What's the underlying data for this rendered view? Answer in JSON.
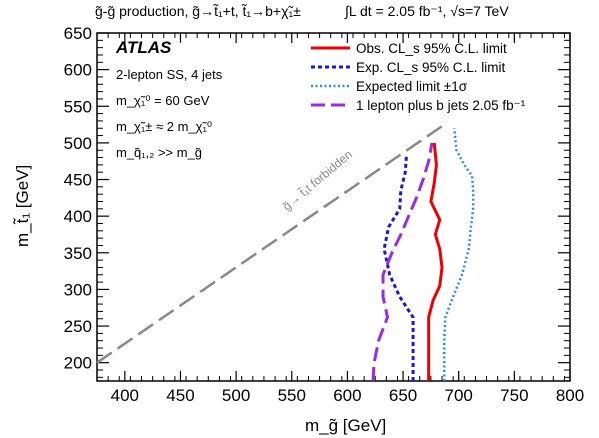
{
  "header": {
    "process": "g̃-g̃ production, g̃→t̃₁+t, t̃₁→b+χ̃₁±",
    "lumi": "∫L dt = 2.05 fb⁻¹, √s=7 TeV"
  },
  "panel": {
    "atlas": "ATLAS",
    "lines": [
      "2-lepton SS, 4 jets",
      "m_χ̃₁⁰ = 60 GeV",
      "m_χ̃₁± ≈ 2 m_χ̃₁⁰",
      "m_q̃₁,₂ >> m_g̃"
    ]
  },
  "diagonal_label": "g̃→ t̃₁t forbidden",
  "chart_data": {
    "type": "line",
    "xlabel": "m_g̃ [GeV]",
    "ylabel": "m_t̃₁ [GeV]",
    "xlim": [
      375,
      800
    ],
    "ylim": [
      175,
      650
    ],
    "xticks": [
      400,
      450,
      500,
      550,
      600,
      650,
      700,
      750,
      800
    ],
    "yticks": [
      200,
      250,
      300,
      350,
      400,
      450,
      500,
      550,
      600,
      650
    ],
    "legend_position": "top-right",
    "series": [
      {
        "name": "Obs. CL_s 95% C.L. limit",
        "color": "#ee0000",
        "style": "solid",
        "points": [
          [
            673,
            175
          ],
          [
            673,
            200
          ],
          [
            673,
            230
          ],
          [
            673,
            262
          ],
          [
            677,
            285
          ],
          [
            683,
            305
          ],
          [
            685,
            330
          ],
          [
            683,
            355
          ],
          [
            679,
            375
          ],
          [
            683,
            395
          ],
          [
            675,
            420
          ],
          [
            678,
            445
          ],
          [
            680,
            470
          ],
          [
            678,
            500
          ]
        ]
      },
      {
        "name": "Exp. CL_s 95% C.L. limit",
        "color": "#1a1acc",
        "style": "dot",
        "points": [
          [
            659,
            175
          ],
          [
            659,
            200
          ],
          [
            659,
            230
          ],
          [
            659,
            262
          ],
          [
            647,
            290
          ],
          [
            638,
            320
          ],
          [
            633,
            355
          ],
          [
            637,
            385
          ],
          [
            647,
            410
          ],
          [
            648,
            435
          ],
          [
            652,
            460
          ],
          [
            653,
            482
          ]
        ]
      },
      {
        "name": "Expected limit ±1σ",
        "color": "#2a8fd8",
        "style": "dotfine",
        "points": [
          [
            687,
            175
          ],
          [
            687,
            200
          ],
          [
            687,
            230
          ],
          [
            688,
            262
          ],
          [
            695,
            290
          ],
          [
            703,
            320
          ],
          [
            709,
            355
          ],
          [
            711,
            385
          ],
          [
            713,
            410
          ],
          [
            713,
            435
          ],
          [
            712,
            455
          ],
          [
            705,
            470
          ],
          [
            698,
            490
          ],
          [
            696,
            520
          ]
        ]
      },
      {
        "name": "1 lepton plus b jets 2.05 fb⁻¹",
        "color": "#9a2be2",
        "style": "dash",
        "points": [
          [
            623,
            175
          ],
          [
            624,
            200
          ],
          [
            628,
            230
          ],
          [
            636,
            262
          ],
          [
            632,
            290
          ],
          [
            632,
            320
          ],
          [
            640,
            350
          ],
          [
            648,
            375
          ],
          [
            655,
            400
          ],
          [
            662,
            425
          ],
          [
            668,
            450
          ],
          [
            673,
            475
          ],
          [
            676,
            500
          ]
        ]
      }
    ],
    "diagonal": {
      "name": "kinematic boundary",
      "color": "#888888",
      "style": "dash",
      "points": [
        [
          375,
          200
        ],
        [
          690,
          528
        ]
      ]
    }
  }
}
